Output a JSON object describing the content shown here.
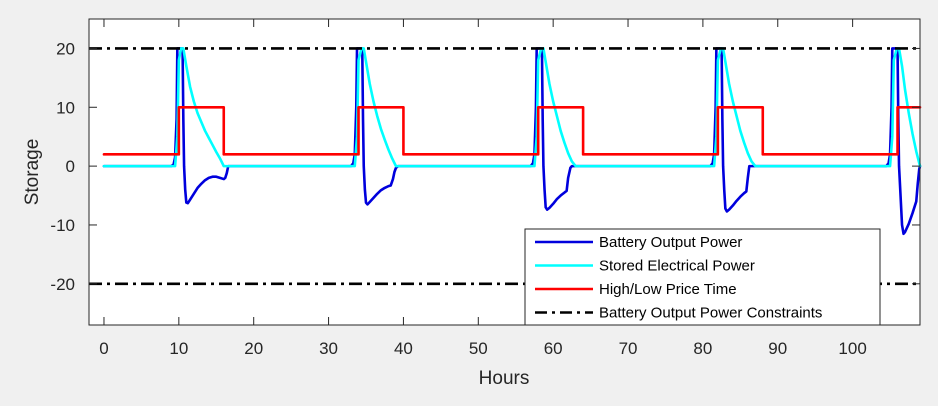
{
  "chart_data": {
    "type": "line",
    "title": "",
    "xlabel": "Hours",
    "ylabel": "Storage",
    "xlim": [
      -2,
      109
    ],
    "ylim": [
      -27,
      25
    ],
    "xticks": [
      0,
      10,
      20,
      30,
      40,
      50,
      60,
      70,
      80,
      90,
      100
    ],
    "yticks": [
      -20,
      -10,
      0,
      10,
      20
    ],
    "grid": false,
    "legend_position": "bottom-right",
    "series": [
      {
        "name": "Battery Output Power",
        "color": "#0000dd",
        "style": "solid",
        "points": [
          [
            0,
            0
          ],
          [
            9,
            0
          ],
          [
            9.3,
            0.3
          ],
          [
            9.5,
            1.5
          ],
          [
            9.7,
            8
          ],
          [
            9.8,
            20
          ],
          [
            10.3,
            20
          ],
          [
            10.5,
            20
          ],
          [
            10.6,
            8
          ],
          [
            10.7,
            0
          ],
          [
            10.85,
            -4
          ],
          [
            11,
            -6.2
          ],
          [
            11.2,
            -6.3
          ],
          [
            11.5,
            -5.7
          ],
          [
            12,
            -4.7
          ],
          [
            12.5,
            -3.7
          ],
          [
            13,
            -3
          ],
          [
            13.5,
            -2.4
          ],
          [
            14,
            -2
          ],
          [
            14.5,
            -1.8
          ],
          [
            15,
            -1.8
          ],
          [
            15.5,
            -2
          ],
          [
            16,
            -2.2
          ],
          [
            16.2,
            -2
          ],
          [
            16.4,
            -1.2
          ],
          [
            16.6,
            0
          ],
          [
            33,
            0
          ],
          [
            33.3,
            0.5
          ],
          [
            33.5,
            2
          ],
          [
            33.7,
            10
          ],
          [
            33.8,
            20
          ],
          [
            34.3,
            20
          ],
          [
            34.5,
            20
          ],
          [
            34.6,
            8
          ],
          [
            34.7,
            0
          ],
          [
            34.85,
            -4
          ],
          [
            35,
            -6.2
          ],
          [
            35.2,
            -6.5
          ],
          [
            35.5,
            -6.1
          ],
          [
            36,
            -5.4
          ],
          [
            36.5,
            -4.7
          ],
          [
            37,
            -4.1
          ],
          [
            37.5,
            -3.7
          ],
          [
            38,
            -3.4
          ],
          [
            38.3,
            -3.3
          ],
          [
            38.6,
            -2.2
          ],
          [
            38.8,
            -1
          ],
          [
            39,
            -0.3
          ],
          [
            39.3,
            0
          ],
          [
            57,
            0
          ],
          [
            57.3,
            0.5
          ],
          [
            57.5,
            2
          ],
          [
            57.7,
            10
          ],
          [
            57.8,
            20
          ],
          [
            58.3,
            20
          ],
          [
            58.5,
            20
          ],
          [
            58.6,
            8
          ],
          [
            58.7,
            0
          ],
          [
            58.85,
            -4
          ],
          [
            59,
            -7
          ],
          [
            59.2,
            -7.4
          ],
          [
            59.5,
            -7.1
          ],
          [
            60,
            -6.4
          ],
          [
            60.5,
            -5.6
          ],
          [
            61,
            -5
          ],
          [
            61.5,
            -4.5
          ],
          [
            61.8,
            -4.2
          ],
          [
            62,
            -2
          ],
          [
            62.3,
            -0.3
          ],
          [
            62.5,
            0
          ],
          [
            81,
            0
          ],
          [
            81.3,
            0.5
          ],
          [
            81.5,
            2
          ],
          [
            81.7,
            10
          ],
          [
            81.8,
            20
          ],
          [
            82.3,
            20
          ],
          [
            82.5,
            20
          ],
          [
            82.6,
            8
          ],
          [
            82.7,
            0
          ],
          [
            82.85,
            -4
          ],
          [
            83,
            -7.2
          ],
          [
            83.2,
            -7.7
          ],
          [
            83.5,
            -7.4
          ],
          [
            84,
            -6.7
          ],
          [
            84.5,
            -5.9
          ],
          [
            85,
            -5.2
          ],
          [
            85.5,
            -4.6
          ],
          [
            85.8,
            -4.3
          ],
          [
            86,
            -2
          ],
          [
            86.2,
            0
          ],
          [
            104.5,
            0
          ],
          [
            104.8,
            0.5
          ],
          [
            105,
            2
          ],
          [
            105.2,
            10
          ],
          [
            105.3,
            20
          ],
          [
            105.8,
            20
          ],
          [
            106,
            20
          ],
          [
            106.1,
            8
          ],
          [
            106.2,
            0
          ],
          [
            106.4,
            -5
          ],
          [
            106.6,
            -10
          ],
          [
            106.8,
            -11.5
          ],
          [
            107,
            -11.2
          ],
          [
            107.5,
            -9.8
          ],
          [
            108,
            -8
          ],
          [
            108.5,
            -6
          ],
          [
            108.7,
            -3
          ],
          [
            108.9,
            -0.5
          ],
          [
            109,
            0
          ]
        ]
      },
      {
        "name": "Stored Electrical Power",
        "color": "#00ffff",
        "style": "solid",
        "points": [
          [
            0,
            0
          ],
          [
            9.5,
            0
          ],
          [
            9.8,
            5
          ],
          [
            10,
            18
          ],
          [
            10.3,
            20
          ],
          [
            10.6,
            20
          ],
          [
            11,
            17
          ],
          [
            11.5,
            13.5
          ],
          [
            12,
            11
          ],
          [
            12.5,
            9
          ],
          [
            13,
            7.5
          ],
          [
            13.5,
            6
          ],
          [
            14,
            4.8
          ],
          [
            14.5,
            3.6
          ],
          [
            15,
            2.4
          ],
          [
            15.5,
            1.3
          ],
          [
            16,
            0
          ],
          [
            33.5,
            0
          ],
          [
            33.8,
            5
          ],
          [
            34,
            18
          ],
          [
            34.4,
            20
          ],
          [
            34.7,
            20
          ],
          [
            35.1,
            17
          ],
          [
            35.5,
            14
          ],
          [
            36,
            11
          ],
          [
            36.5,
            8.5
          ],
          [
            37,
            6.3
          ],
          [
            37.5,
            4.5
          ],
          [
            38,
            2.8
          ],
          [
            38.5,
            1.3
          ],
          [
            39,
            0
          ],
          [
            57.5,
            0
          ],
          [
            57.8,
            5
          ],
          [
            58,
            18
          ],
          [
            58.4,
            20
          ],
          [
            58.7,
            20
          ],
          [
            59.1,
            17
          ],
          [
            59.5,
            14
          ],
          [
            60,
            11
          ],
          [
            60.5,
            8.5
          ],
          [
            61,
            6
          ],
          [
            61.5,
            4
          ],
          [
            62,
            2.2
          ],
          [
            62.5,
            0.8
          ],
          [
            63,
            0
          ],
          [
            81.5,
            0
          ],
          [
            81.8,
            5
          ],
          [
            82,
            18
          ],
          [
            82.4,
            20
          ],
          [
            82.7,
            20
          ],
          [
            83.1,
            17
          ],
          [
            83.5,
            14
          ],
          [
            84,
            11
          ],
          [
            84.5,
            8.5
          ],
          [
            85,
            6
          ],
          [
            85.5,
            4
          ],
          [
            86,
            2.2
          ],
          [
            86.5,
            0.8
          ],
          [
            87,
            0
          ],
          [
            105,
            0
          ],
          [
            105.3,
            5
          ],
          [
            105.5,
            18
          ],
          [
            105.9,
            20
          ],
          [
            106.2,
            20
          ],
          [
            106.6,
            17
          ],
          [
            107,
            13
          ],
          [
            107.5,
            9
          ],
          [
            108,
            5.5
          ],
          [
            108.5,
            2.5
          ],
          [
            109,
            0
          ]
        ]
      },
      {
        "name": "High/Low Price Time",
        "color": "#ff0000",
        "style": "solid",
        "points": [
          [
            0,
            2
          ],
          [
            10,
            2
          ],
          [
            10,
            10
          ],
          [
            16,
            10
          ],
          [
            16,
            2
          ],
          [
            34,
            2
          ],
          [
            34,
            10
          ],
          [
            40,
            10
          ],
          [
            40,
            2
          ],
          [
            58,
            2
          ],
          [
            58,
            10
          ],
          [
            64,
            10
          ],
          [
            64,
            2
          ],
          [
            82,
            2
          ],
          [
            82,
            10
          ],
          [
            88,
            10
          ],
          [
            88,
            2
          ],
          [
            106,
            2
          ],
          [
            106,
            10
          ],
          [
            109,
            10
          ]
        ]
      },
      {
        "name": "Battery Output Power Constraints",
        "color": "#000000",
        "style": "dashdot",
        "lines": [
          20,
          -20
        ]
      }
    ]
  }
}
